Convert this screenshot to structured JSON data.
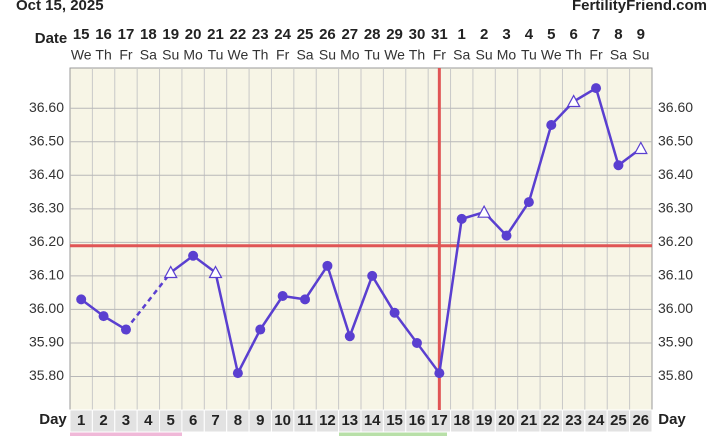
{
  "header": {
    "date": "Oct 15, 2025",
    "site": "FertilityFriend.com"
  },
  "chart_data": {
    "type": "line",
    "date_label": "Date",
    "day_label": "Day",
    "categories": [
      1,
      2,
      3,
      4,
      5,
      6,
      7,
      8,
      9,
      10,
      11,
      12,
      13,
      14,
      15,
      16,
      17,
      18,
      19,
      20,
      21,
      22,
      23,
      24,
      25,
      26
    ],
    "dates": [
      15,
      16,
      17,
      18,
      19,
      20,
      21,
      22,
      23,
      24,
      25,
      26,
      27,
      28,
      29,
      30,
      31,
      1,
      2,
      3,
      4,
      5,
      6,
      7,
      8,
      9
    ],
    "weekdays": [
      "We",
      "Th",
      "Fr",
      "Sa",
      "Su",
      "Mo",
      "Tu",
      "We",
      "Th",
      "Fr",
      "Sa",
      "Su",
      "Mo",
      "Tu",
      "We",
      "Th",
      "Fr",
      "Sa",
      "Su",
      "Mo",
      "Tu",
      "We",
      "Th",
      "Fr",
      "Sa",
      "Su"
    ],
    "series": [
      {
        "color": "#5a3fd0",
        "values": [
          36.03,
          35.98,
          35.94,
          null,
          36.11,
          36.16,
          36.11,
          35.81,
          35.94,
          36.04,
          36.03,
          36.13,
          35.92,
          36.1,
          35.99,
          35.9,
          35.81,
          36.27,
          36.29,
          36.22,
          36.32,
          36.55,
          36.62,
          36.66,
          36.43,
          36.48
        ],
        "markers": [
          "circle",
          "circle",
          "circle",
          null,
          "triangle",
          "circle",
          "triangle",
          "circle",
          "circle",
          "circle",
          "circle",
          "circle",
          "circle",
          "circle",
          "circle",
          "circle",
          "circle",
          "circle",
          "triangle",
          "circle",
          "circle",
          "circle",
          "triangle",
          "circle",
          "circle",
          "triangle"
        ]
      }
    ],
    "gap_style": "dashed",
    "coverline": 36.19,
    "ovulation_day": 17,
    "reference_color": "#e05555",
    "ylim": [
      35.7,
      36.72
    ],
    "yticks": [
      {
        "value": 35.8,
        "label": "35.80"
      },
      {
        "value": 35.9,
        "label": "35.90"
      },
      {
        "value": 36.0,
        "label": "36.00"
      },
      {
        "value": 36.1,
        "label": "36.10"
      },
      {
        "value": 36.2,
        "label": "36.20"
      },
      {
        "value": 36.3,
        "label": "36.30"
      },
      {
        "value": 36.4,
        "label": "36.40"
      },
      {
        "value": 36.5,
        "label": "36.50"
      },
      {
        "value": 36.6,
        "label": "36.60"
      }
    ],
    "grid": true
  }
}
